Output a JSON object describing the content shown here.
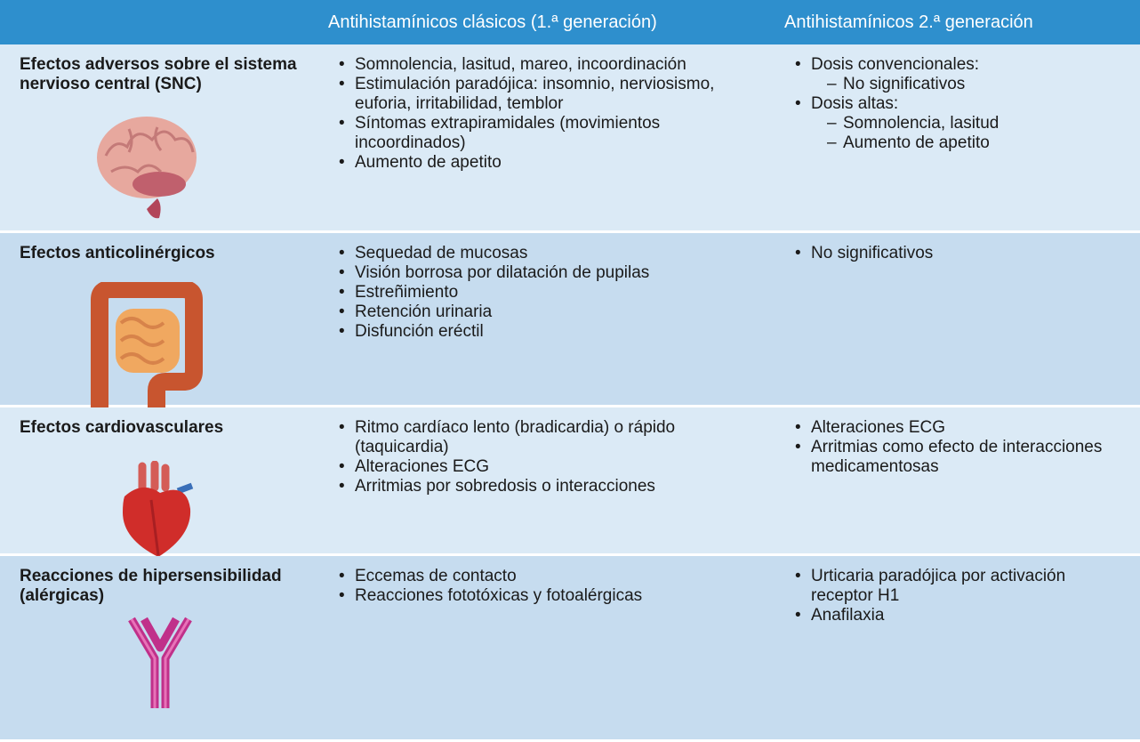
{
  "header": {
    "columns": [
      "Antihistamínicos clásicos (1.ª generación)",
      "Antihistamínicos 2.ª generación"
    ]
  },
  "rows": [
    {
      "label": "Efectos adversos sobre el sistema nervioso central (SNC)",
      "first_gen": [
        {
          "text": "Somnolencia, lasitud, mareo, incoordinación"
        },
        {
          "text": "Estimulación paradójica: insomnio, nerviosismo, euforia, irritabilidad, temblor"
        },
        {
          "text": "Síntomas extrapiramidales (movimientos incoordinados)"
        },
        {
          "text": "Aumento de apetito"
        }
      ],
      "second_gen": [
        {
          "text": "Dosis convencionales:",
          "sub": [
            "No significativos"
          ]
        },
        {
          "text": "Dosis altas:",
          "sub": [
            "Somnolencia, lasitud",
            "Aumento de apetito"
          ]
        }
      ]
    },
    {
      "label": "Efectos anticolinérgicos",
      "first_gen": [
        {
          "text": "Sequedad de mucosas"
        },
        {
          "text": "Visión borrosa por dilatación de pupilas"
        },
        {
          "text": "Estreñimiento"
        },
        {
          "text": "Retención urinaria"
        },
        {
          "text": "Disfunción eréctil"
        }
      ],
      "second_gen": [
        {
          "text": "No significativos"
        }
      ]
    },
    {
      "label": "Efectos cardiovasculares",
      "first_gen": [
        {
          "text": "Ritmo cardíaco lento (bradicardia) o rápido (taquicardia)"
        },
        {
          "text": "Alteraciones ECG"
        },
        {
          "text": "Arritmias por sobredosis o interacciones"
        }
      ],
      "second_gen": [
        {
          "text": "Alteraciones ECG"
        },
        {
          "text": "Arritmias como efecto de interacciones medicamentosas"
        }
      ]
    },
    {
      "label": "Reacciones de hipersensibilidad (alérgicas)",
      "first_gen": [
        {
          "text": "Eccemas de contacto"
        },
        {
          "text": "Reacciones fototóxicas y fotoalérgicas"
        }
      ],
      "second_gen": [
        {
          "text": "Urticaria paradójica por activación receptor H1"
        },
        {
          "text": "Anafilaxia"
        }
      ]
    }
  ]
}
